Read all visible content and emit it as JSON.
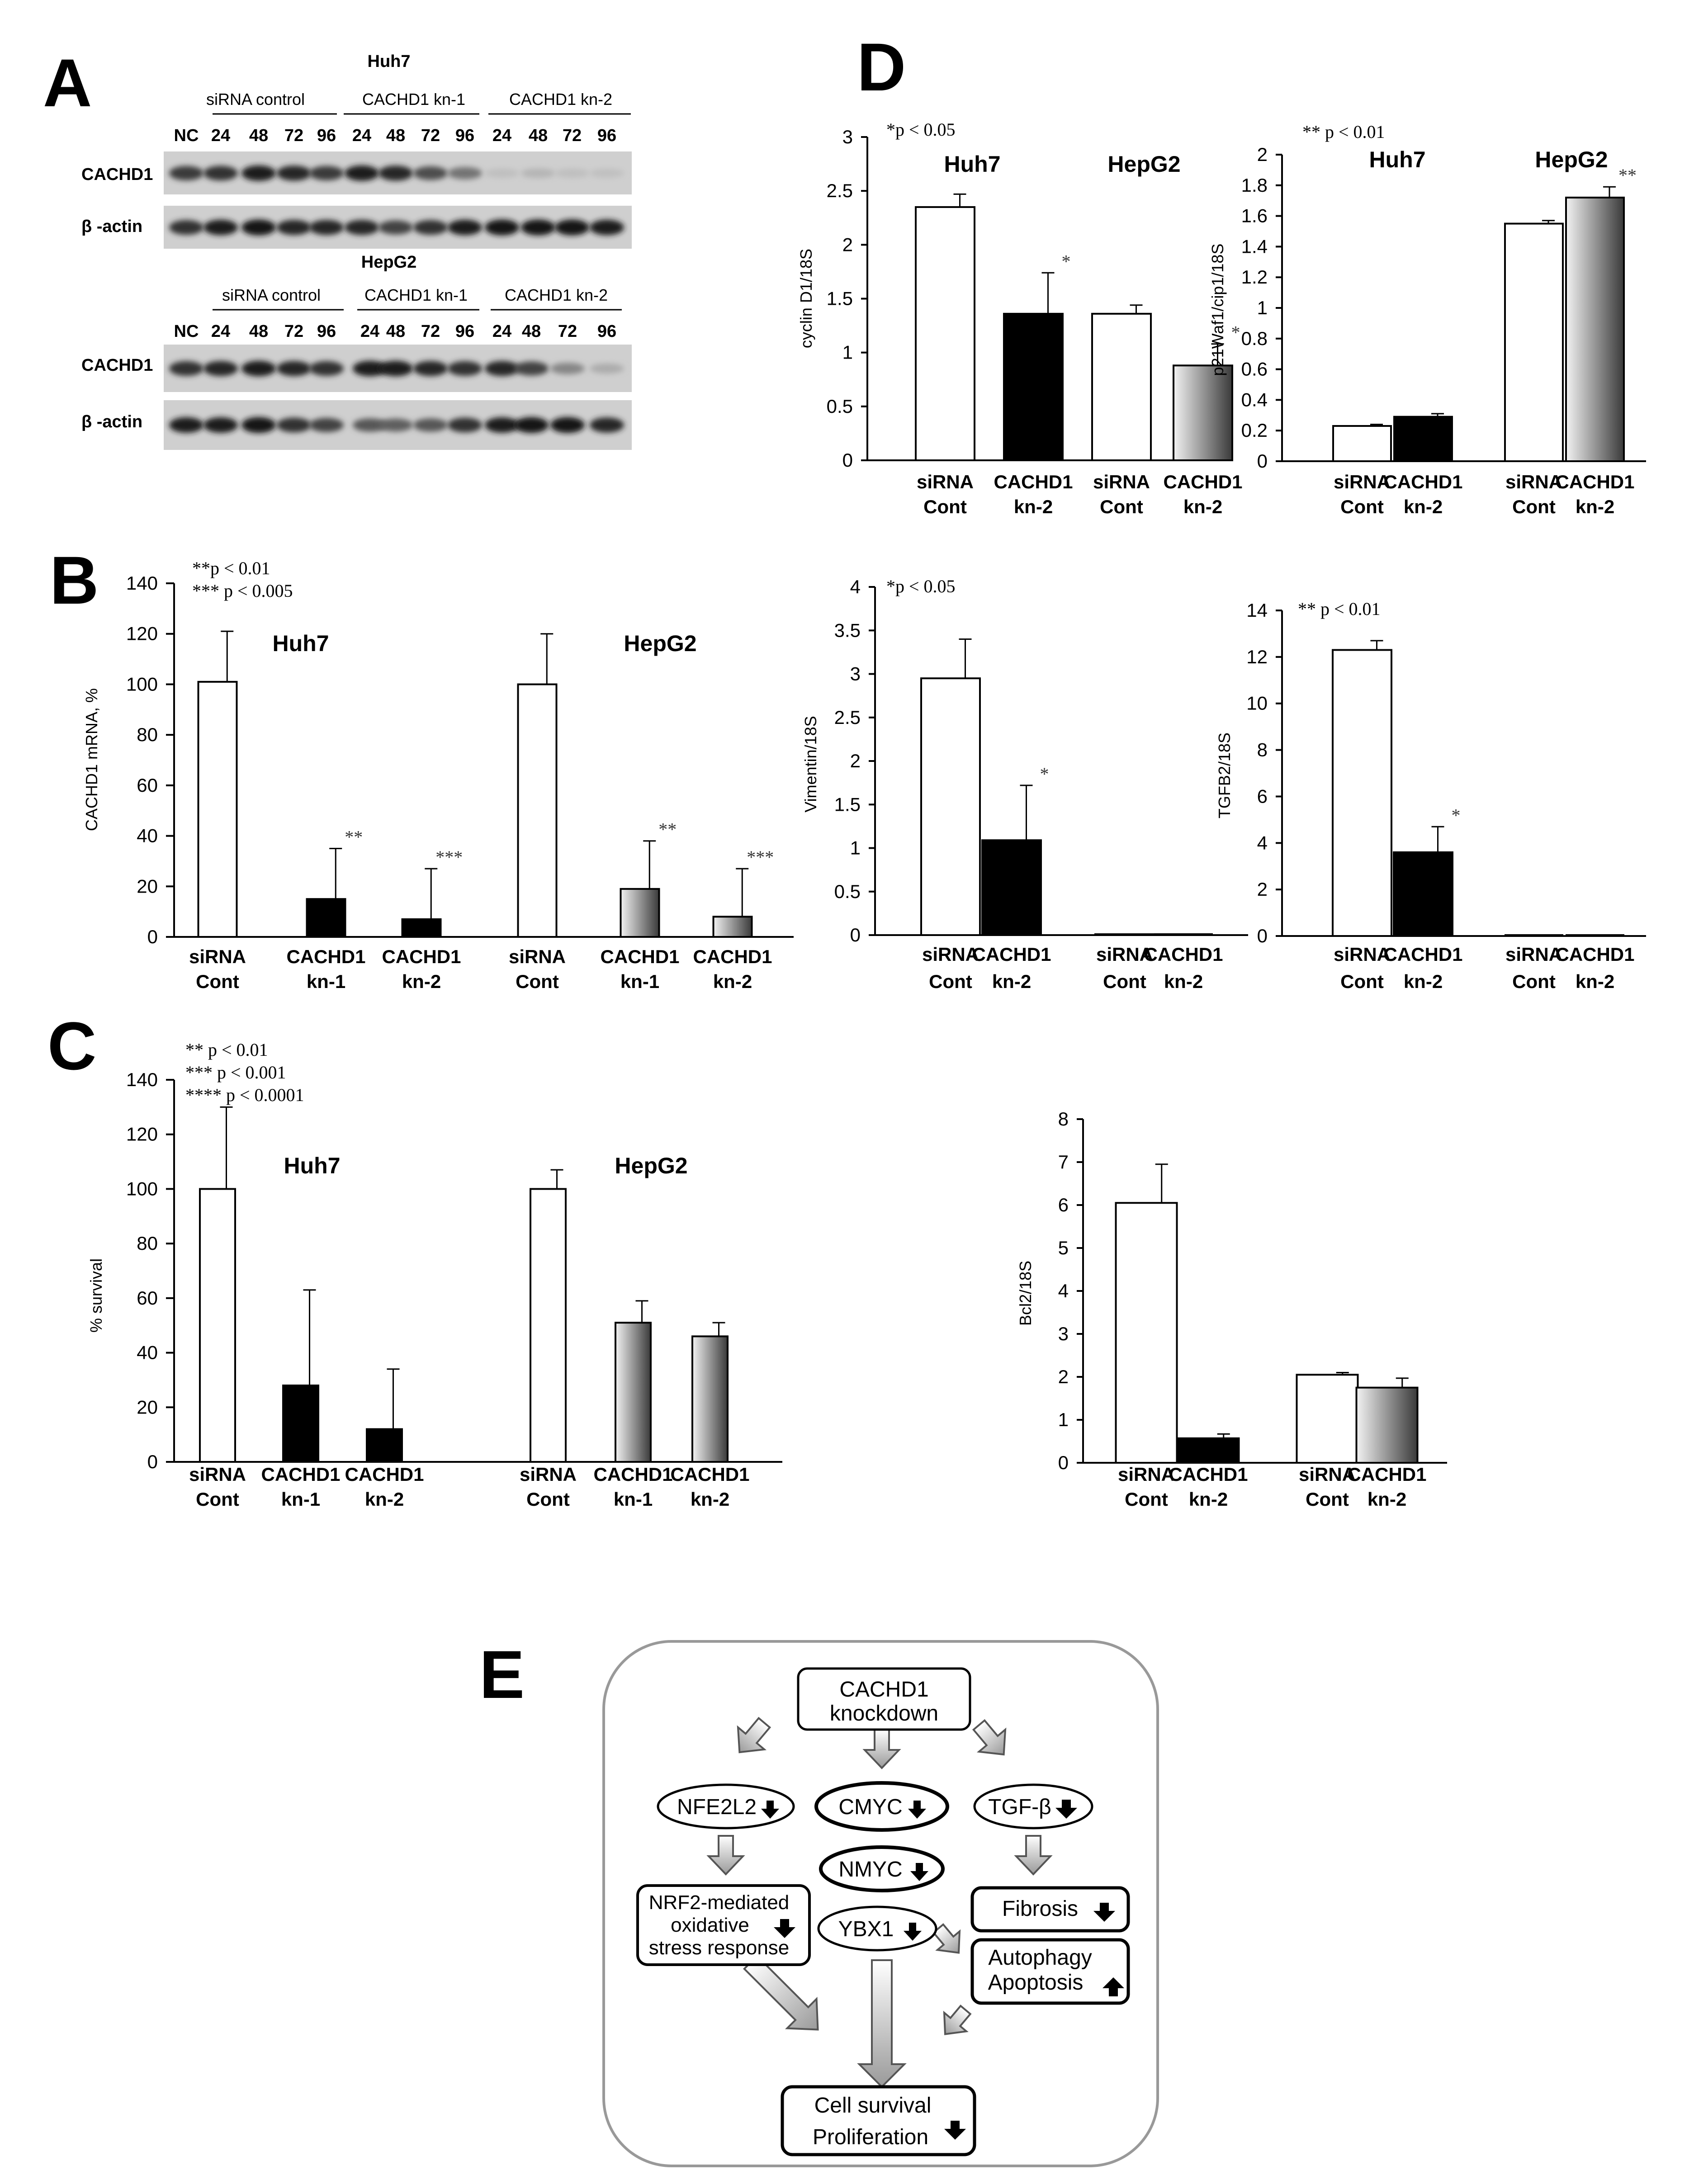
{
  "panels": {
    "a": "A",
    "b": "B",
    "c": "C",
    "d": "D",
    "e": "E"
  },
  "western": {
    "blocks": [
      {
        "cell": "Huh7",
        "groups": [
          "siRNA control",
          "CACHD1 kn-1",
          "CACHD1 kn-2"
        ],
        "lanes": [
          "NC",
          "24",
          "48",
          "72",
          "96",
          "24",
          "48",
          "72",
          "96",
          "24",
          "48",
          "72",
          "96"
        ],
        "rows": [
          "CACHD1",
          "β -actin"
        ],
        "intensity": {
          "CACHD1": [
            0.75,
            0.8,
            0.9,
            0.85,
            0.75,
            0.9,
            0.85,
            0.65,
            0.45,
            0.05,
            0.1,
            0.05,
            0.04
          ],
          "actin": [
            0.8,
            0.9,
            0.95,
            0.85,
            0.85,
            0.85,
            0.7,
            0.8,
            0.9,
            0.95,
            0.95,
            0.95,
            0.9
          ]
        }
      },
      {
        "cell": "HepG2",
        "groups": [
          "siRNA control",
          "CACHD1 kn-1",
          "CACHD1 kn-2"
        ],
        "lanes": [
          "NC",
          "24",
          "48",
          "72",
          "96",
          "24",
          "48",
          "72",
          "96",
          "24",
          "48",
          "72",
          "96"
        ],
        "rows": [
          "CACHD1",
          "β -actin"
        ],
        "intensity": {
          "CACHD1": [
            0.8,
            0.85,
            0.9,
            0.85,
            0.8,
            0.9,
            0.9,
            0.85,
            0.8,
            0.85,
            0.7,
            0.35,
            0.15
          ],
          "actin": [
            0.9,
            0.9,
            0.95,
            0.8,
            0.7,
            0.6,
            0.55,
            0.6,
            0.8,
            0.9,
            0.95,
            0.95,
            0.85
          ]
        }
      }
    ]
  },
  "chart_data": [
    {
      "id": "B",
      "type": "bar",
      "ylabel": "CACHD1 mRNA, %",
      "ylim": [
        0,
        140
      ],
      "yticks": [
        0,
        20,
        40,
        60,
        80,
        100,
        120,
        140
      ],
      "notes": [
        "**p < 0.01",
        "*** p < 0.005"
      ],
      "groups": [
        "Huh7",
        "HepG2"
      ],
      "categories": [
        [
          "siRNA",
          "Cont"
        ],
        [
          "CACHD1",
          "kn-1"
        ],
        [
          "CACHD1",
          "kn-2"
        ],
        [
          "siRNA",
          "Cont"
        ],
        [
          "CACHD1",
          "kn-1"
        ],
        [
          "CACHD1",
          "kn-2"
        ]
      ],
      "values": [
        101,
        15,
        7,
        100,
        19,
        8
      ],
      "errors": [
        20,
        20,
        20,
        20,
        19,
        19
      ],
      "sig": [
        "",
        "**",
        "***",
        "",
        "**",
        "***"
      ],
      "fills": [
        "white",
        "black",
        "black",
        "white",
        "grad",
        "grad"
      ]
    },
    {
      "id": "C",
      "type": "bar",
      "ylabel": "% survival",
      "ylim": [
        0,
        140
      ],
      "yticks": [
        0,
        20,
        40,
        60,
        80,
        100,
        120,
        140
      ],
      "notes": [
        "** p < 0.01",
        "*** p < 0.001",
        "**** p < 0.0001"
      ],
      "groups": [
        "Huh7",
        "HepG2"
      ],
      "categories": [
        [
          "siRNA",
          "Cont"
        ],
        [
          "CACHD1",
          "kn-1"
        ],
        [
          "CACHD1",
          "kn-2"
        ],
        [
          "siRNA",
          "Cont"
        ],
        [
          "CACHD1",
          "kn-1"
        ],
        [
          "CACHD1",
          "kn-2"
        ]
      ],
      "values": [
        100,
        28,
        12,
        100,
        51,
        46
      ],
      "errors": [
        30,
        35,
        22,
        7,
        8,
        5
      ],
      "sig": [
        "",
        "",
        "",
        "",
        "",
        ""
      ],
      "fills": [
        "white",
        "black",
        "black",
        "white",
        "grad",
        "grad"
      ]
    },
    {
      "id": "D1",
      "type": "bar",
      "ylabel": "cyclin D1/18S",
      "ylim": [
        0,
        3
      ],
      "yticks": [
        0,
        0.5,
        1,
        1.5,
        2,
        2.5,
        3
      ],
      "notes": [
        "*p < 0.05"
      ],
      "groups": [
        "Huh7",
        "HepG2"
      ],
      "categories": [
        [
          "siRNA",
          "Cont"
        ],
        [
          "CACHD1",
          "kn-2"
        ],
        [
          "siRNA",
          "Cont"
        ],
        [
          "CACHD1",
          "kn-2"
        ]
      ],
      "values": [
        2.35,
        1.36,
        1.36,
        0.88
      ],
      "errors": [
        0.12,
        0.38,
        0.08,
        0.2
      ],
      "sig": [
        "",
        "*",
        "",
        "*"
      ],
      "fills": [
        "white",
        "black",
        "white",
        "grad"
      ]
    },
    {
      "id": "D2",
      "type": "bar",
      "ylabel": "p21Waf1/cip1/18S",
      "ylim": [
        0,
        2
      ],
      "yticks": [
        0,
        0.2,
        0.4,
        0.6,
        0.8,
        1,
        1.2,
        1.4,
        1.6,
        1.8,
        2
      ],
      "notes": [
        "** p < 0.01"
      ],
      "groups": [
        "Huh7",
        "HepG2"
      ],
      "categories": [
        [
          "siRNA",
          "Cont"
        ],
        [
          "CACHD1",
          "kn-2"
        ],
        [
          "siRNA",
          "Cont"
        ],
        [
          "CACHD1",
          "kn-2"
        ]
      ],
      "values": [
        0.23,
        0.29,
        1.55,
        1.72
      ],
      "errors": [
        0.01,
        0.02,
        0.02,
        0.07
      ],
      "sig": [
        "",
        "",
        "",
        "**"
      ],
      "fills": [
        "white",
        "black",
        "white",
        "grad"
      ]
    },
    {
      "id": "D3",
      "type": "bar",
      "ylabel": "Vimentin/18S",
      "ylim": [
        0,
        4
      ],
      "yticks": [
        0,
        0.5,
        1,
        1.5,
        2,
        2.5,
        3,
        3.5,
        4
      ],
      "notes": [
        "*p < 0.05"
      ],
      "groups": [],
      "categories": [
        [
          "siRNA",
          "Cont"
        ],
        [
          "CACHD1",
          "kn-2"
        ],
        [
          "siRNA",
          "Cont"
        ],
        [
          "CACHD1",
          "kn-2"
        ]
      ],
      "values": [
        2.95,
        1.09,
        0.01,
        0
      ],
      "errors": [
        0.45,
        0.63,
        0,
        0
      ],
      "sig": [
        "",
        "*",
        "",
        ""
      ],
      "fills": [
        "white",
        "black",
        "white",
        "grad"
      ]
    },
    {
      "id": "D4",
      "type": "bar",
      "ylabel": "TGFB2/18S",
      "ylim": [
        0,
        14
      ],
      "yticks": [
        0,
        2,
        4,
        6,
        8,
        10,
        12,
        14
      ],
      "notes": [
        "** p < 0.01"
      ],
      "groups": [],
      "categories": [
        [
          "siRNA",
          "Cont"
        ],
        [
          "CACHD1",
          "kn-2"
        ],
        [
          "siRNA",
          "Cont"
        ],
        [
          "CACHD1",
          "kn-2"
        ]
      ],
      "values": [
        12.3,
        3.6,
        0,
        0
      ],
      "errors": [
        0.4,
        1.1,
        0,
        0
      ],
      "sig": [
        "",
        "*",
        "",
        ""
      ],
      "fills": [
        "white",
        "black",
        "white",
        "grad"
      ]
    },
    {
      "id": "D5",
      "type": "bar",
      "ylabel": "Bcl2/18S",
      "ylim": [
        0,
        8
      ],
      "yticks": [
        0,
        1,
        2,
        3,
        4,
        5,
        6,
        7,
        8
      ],
      "notes": [],
      "groups": [],
      "categories": [
        [
          "siRNA",
          "Cont"
        ],
        [
          "CACHD1",
          "kn-2"
        ],
        [
          "siRNA",
          "Cont"
        ],
        [
          "CACHD1",
          "kn-2"
        ]
      ],
      "values": [
        6.05,
        0.57,
        2.05,
        1.75
      ],
      "errors": [
        0.9,
        0.1,
        0.05,
        0.22
      ],
      "sig": [
        "",
        "",
        "",
        ""
      ],
      "fills": [
        "white",
        "black",
        "white",
        "grad"
      ]
    }
  ],
  "diagram": {
    "start": [
      "CACHD1",
      "knockdown"
    ],
    "nfe2l2": "NFE2L2",
    "cmyc": "CMYC",
    "tgfb": "TGF-β",
    "nmyc": "NMYC",
    "ybx1": "YBX1",
    "nrf2": [
      "NRF2-mediated",
      "oxidative",
      "stress response"
    ],
    "fibrosis": "Fibrosis",
    "autophagy": [
      "Autophagy",
      "Apoptosis"
    ],
    "outcome": [
      "Cell survival",
      "Proliferation"
    ]
  }
}
